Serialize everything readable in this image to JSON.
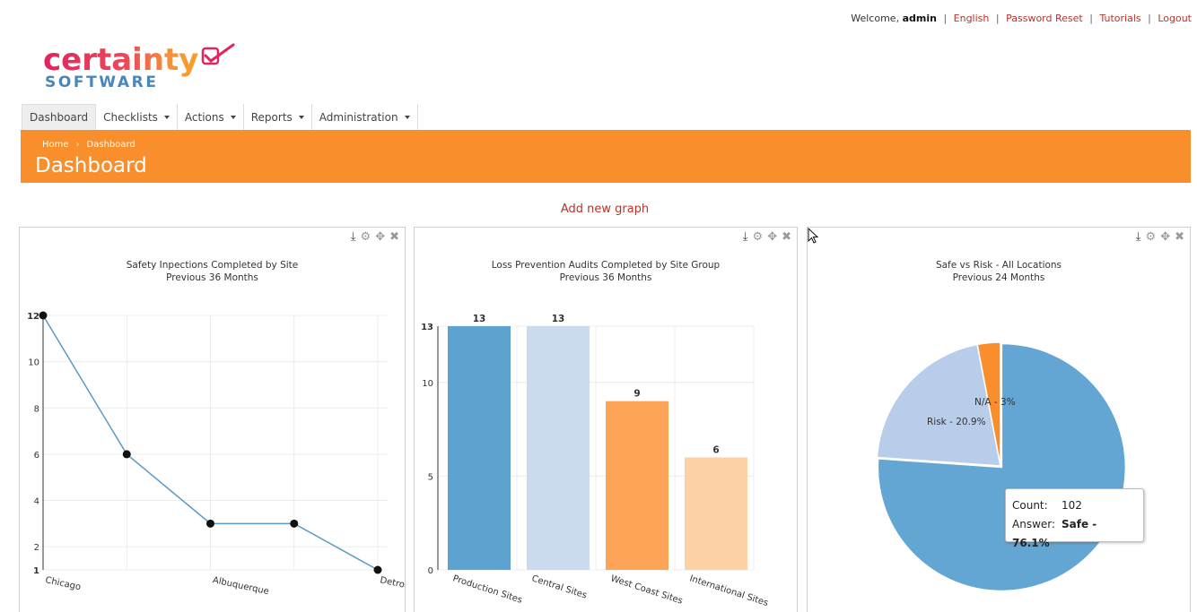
{
  "topbar": {
    "welcome_prefix": "Welcome, ",
    "user": "admin",
    "links": [
      "English",
      "Password Reset",
      "Tutorials",
      "Logout"
    ]
  },
  "logo": {
    "word": "certainty",
    "sub": "SOFTWARE"
  },
  "nav": {
    "items": [
      {
        "label": "Dashboard",
        "dropdown": false
      },
      {
        "label": "Checklists",
        "dropdown": true
      },
      {
        "label": "Actions",
        "dropdown": true
      },
      {
        "label": "Reports",
        "dropdown": true
      },
      {
        "label": "Administration",
        "dropdown": true
      }
    ]
  },
  "breadcrumb": {
    "home": "Home",
    "current": "Dashboard"
  },
  "page_title": "Dashboard",
  "add_graph_label": "Add new graph",
  "colors": {
    "accent": "#f98e2d",
    "link": "#b5352e",
    "line": "#5b9ac4",
    "bar1": "#5ea3d0",
    "bar2": "#ccdaf0",
    "bar3": "#fda458",
    "bar4": "#fdd1a6",
    "pie_safe": "#63a6d3",
    "pie_risk": "#b8cdea",
    "pie_na": "#f98e2d"
  },
  "chart_data": [
    {
      "type": "line",
      "title": "Safety Inpections Completed by Site",
      "subtitle": "Previous 36 Months",
      "categories": [
        "Chicago",
        "",
        "Albuquerque",
        "",
        "Detroit"
      ],
      "category_ticks_shown": [
        "Chicago",
        "Albuquerque",
        "Detro"
      ],
      "values": [
        12,
        6,
        3,
        3,
        1
      ],
      "yticks": [
        1,
        2,
        4,
        6,
        8,
        10,
        12
      ],
      "ylim": [
        1,
        12
      ]
    },
    {
      "type": "bar",
      "title": "Loss Prevention Audits Completed by Site Group",
      "subtitle": "Previous 36 Months",
      "categories": [
        "Production Sites",
        "Central Sites",
        "West Coast Sites",
        "International Sites"
      ],
      "values": [
        13,
        13,
        9,
        6
      ],
      "yticks": [
        0,
        5,
        10,
        13
      ],
      "ylim": [
        0,
        13
      ]
    },
    {
      "type": "pie",
      "title": "Safe vs Risk - All Locations",
      "subtitle": "Previous 24 Months",
      "slices": [
        {
          "label": "Safe - 76.1%",
          "value": 76.1
        },
        {
          "label": "Risk - 20.9%",
          "value": 20.9
        },
        {
          "label": "N/A - 3%",
          "value": 3
        }
      ],
      "tooltip": {
        "count_label": "Count:",
        "count": "102",
        "answer_label": "Answer:",
        "answer": "Safe - 76.1%"
      }
    }
  ]
}
